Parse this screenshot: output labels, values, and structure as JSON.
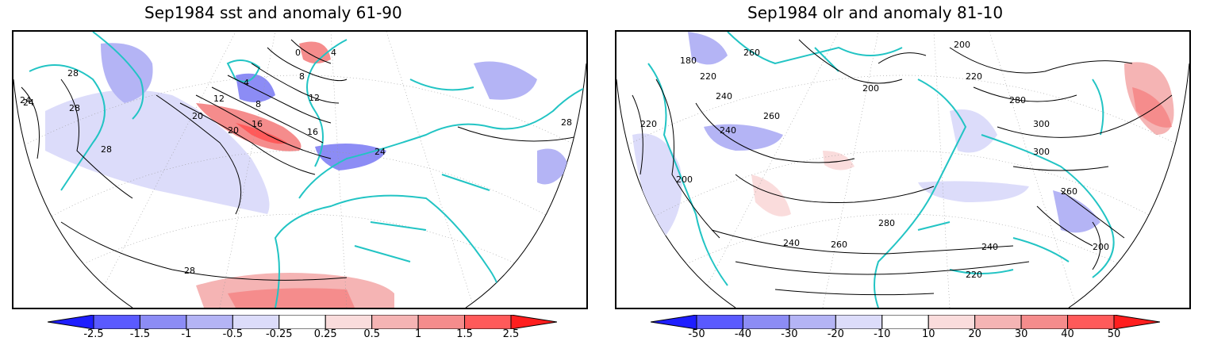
{
  "panels": [
    {
      "title": "Sep1984 sst and anomaly 61-90",
      "contour_labels": [
        "0",
        "4",
        "8",
        "12",
        "16",
        "20",
        "24",
        "28",
        "4",
        "8",
        "12",
        "16",
        "20",
        "24",
        "28",
        "28",
        "28",
        "28",
        "24"
      ],
      "colorbar": {
        "ticks": [
          "-2.5",
          "-1.5",
          "-1",
          "-0.5",
          "-0.25",
          "0.25",
          "0.5",
          "1",
          "1.5",
          "2.5"
        ],
        "colors": [
          "#1e1eff",
          "#5a5aff",
          "#8c8cf5",
          "#b4b4f5",
          "#dcdcfa",
          "#ffffff",
          "#fadcdc",
          "#f5b4b4",
          "#f58c8c",
          "#ff5a5a",
          "#ff1e1e"
        ]
      }
    },
    {
      "title": "Sep1984 olr and anomaly 81-10",
      "contour_labels": [
        "180",
        "200",
        "220",
        "240",
        "260",
        "280",
        "300",
        "260",
        "240",
        "220",
        "200",
        "200",
        "220",
        "240",
        "260",
        "280",
        "300",
        "260",
        "240",
        "220",
        "200"
      ],
      "colorbar": {
        "ticks": [
          "-50",
          "-40",
          "-30",
          "-20",
          "-10",
          "10",
          "20",
          "30",
          "40",
          "50"
        ],
        "colors": [
          "#1e1eff",
          "#5a5aff",
          "#8c8cf5",
          "#b4b4f5",
          "#dcdcfa",
          "#ffffff",
          "#fadcdc",
          "#f5b4b4",
          "#f58c8c",
          "#ff5a5a",
          "#ff1e1e"
        ]
      }
    }
  ],
  "colors": {
    "coast": "#22c4c4",
    "contour": "#000000",
    "grid": "#999999"
  }
}
